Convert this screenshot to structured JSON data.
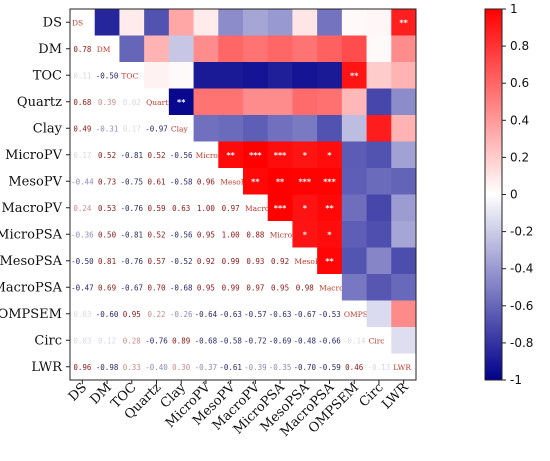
{
  "chart_data": {
    "type": "heatmap",
    "variables": [
      "DS",
      "DM",
      "TOC",
      "Quartz",
      "Clay",
      "MicroPV",
      "MesoPV",
      "MacroPV",
      "MicroPSA",
      "MesoPSA",
      "MacroPSA",
      "OMPSEM",
      "Circ",
      "LWR"
    ],
    "lower_values": [
      [],
      [
        0.78
      ],
      [
        0.11,
        -0.5
      ],
      [
        0.68,
        0.39,
        0.02
      ],
      [
        0.49,
        -0.31,
        0.17,
        -0.97
      ],
      [
        0.17,
        0.52,
        -0.81,
        0.52,
        -0.56
      ],
      [
        -0.44,
        0.73,
        -0.75,
        0.61,
        -0.58,
        0.96
      ],
      [
        0.24,
        0.53,
        -0.76,
        0.59,
        0.63,
        1.0,
        0.97
      ],
      [
        -0.36,
        0.5,
        -0.81,
        0.52,
        -0.56,
        0.95,
        1.0,
        0.88
      ],
      [
        -0.5,
        0.81,
        -0.76,
        0.57,
        -0.52,
        0.92,
        0.99,
        0.93,
        0.92
      ],
      [
        -0.47,
        0.69,
        -0.67,
        0.7,
        -0.68,
        0.95,
        0.99,
        0.97,
        0.95,
        0.98
      ],
      [
        0.03,
        -0.6,
        0.95,
        0.22,
        -0.26,
        -0.64,
        -0.63,
        -0.57,
        -0.63,
        -0.67,
        -0.53
      ],
      [
        0.03,
        0.12,
        0.28,
        -0.76,
        0.89,
        -0.68,
        -0.58,
        -0.72,
        -0.69,
        -0.48,
        -0.66,
        -0.14
      ],
      [
        0.96,
        -0.98,
        0.33,
        -0.4,
        0.3,
        -0.37,
        -0.61,
        -0.39,
        -0.35,
        -0.7,
        -0.59,
        0.46,
        -0.13
      ]
    ],
    "upper_values": [
      [
        -0.85,
        0.08,
        -0.68,
        0.35,
        0.08,
        -0.45,
        -0.35,
        -0.4,
        0.1,
        -0.55,
        0.02,
        0.03,
        0.88
      ],
      [
        -0.6,
        0.3,
        -0.22,
        0.45,
        0.6,
        0.55,
        0.6,
        0.55,
        0.62,
        0.7,
        0.02,
        0.45
      ],
      [
        0.05,
        0.02,
        -0.9,
        -0.9,
        -0.92,
        -0.88,
        -0.92,
        -0.9,
        0.92,
        0.2,
        0.3
      ],
      [
        -0.97,
        0.55,
        0.55,
        0.45,
        0.45,
        0.58,
        0.56,
        0.28,
        -0.72,
        -0.45
      ],
      [
        -0.56,
        -0.58,
        -0.63,
        -0.56,
        -0.52,
        -0.68,
        -0.26,
        0.89,
        0.3
      ],
      [
        0.96,
        1.0,
        0.95,
        0.92,
        0.95,
        -0.64,
        -0.68,
        -0.37
      ],
      [
        0.97,
        1.0,
        0.99,
        0.99,
        -0.63,
        -0.58,
        -0.61
      ],
      [
        1.0,
        0.93,
        0.97,
        -0.57,
        -0.72,
        -0.39
      ],
      [
        0.92,
        0.95,
        -0.63,
        -0.69,
        -0.35
      ],
      [
        0.98,
        -0.67,
        -0.48,
        -0.7
      ],
      [
        -0.53,
        -0.66,
        -0.59
      ],
      [
        -0.14,
        0.46
      ],
      [
        -0.13
      ]
    ],
    "upper_stars": [
      [
        "",
        "",
        "",
        "",
        "",
        "",
        "",
        "",
        "",
        "",
        "",
        "",
        "**"
      ],
      [
        "",
        "",
        "",
        "",
        "",
        "",
        "",
        "",
        "",
        "",
        "",
        ""
      ],
      [
        "",
        "",
        "",
        "",
        "",
        "",
        "",
        "",
        "**",
        "",
        ""
      ],
      [
        "**",
        "",
        "",
        "",
        "",
        "",
        "",
        "",
        "",
        ""
      ],
      [
        "",
        "",
        "",
        "",
        "",
        "",
        "",
        "",
        ""
      ],
      [
        "**",
        "***",
        "***",
        "*",
        "*",
        "",
        "",
        ""
      ],
      [
        "**",
        "**",
        "***",
        "***",
        "",
        "",
        ""
      ],
      [
        "***",
        "*",
        "**",
        "",
        "",
        ""
      ],
      [
        "*",
        "*",
        "",
        "",
        ""
      ],
      [
        "**",
        "",
        ""
      ],
      [
        "",
        ""
      ],
      [
        ""
      ],
      [
        ""
      ]
    ],
    "colorbar": {
      "min": -1,
      "max": 1,
      "ticks": [
        "1",
        "0.8",
        "0.6",
        "0.4",
        "0.2",
        "0",
        "-0.2",
        "-0.4",
        "-0.6",
        "-0.8",
        "-1"
      ]
    },
    "colors": {
      "negative": "#00008b",
      "zero": "#ffffff",
      "positive": "#ff0000"
    }
  }
}
